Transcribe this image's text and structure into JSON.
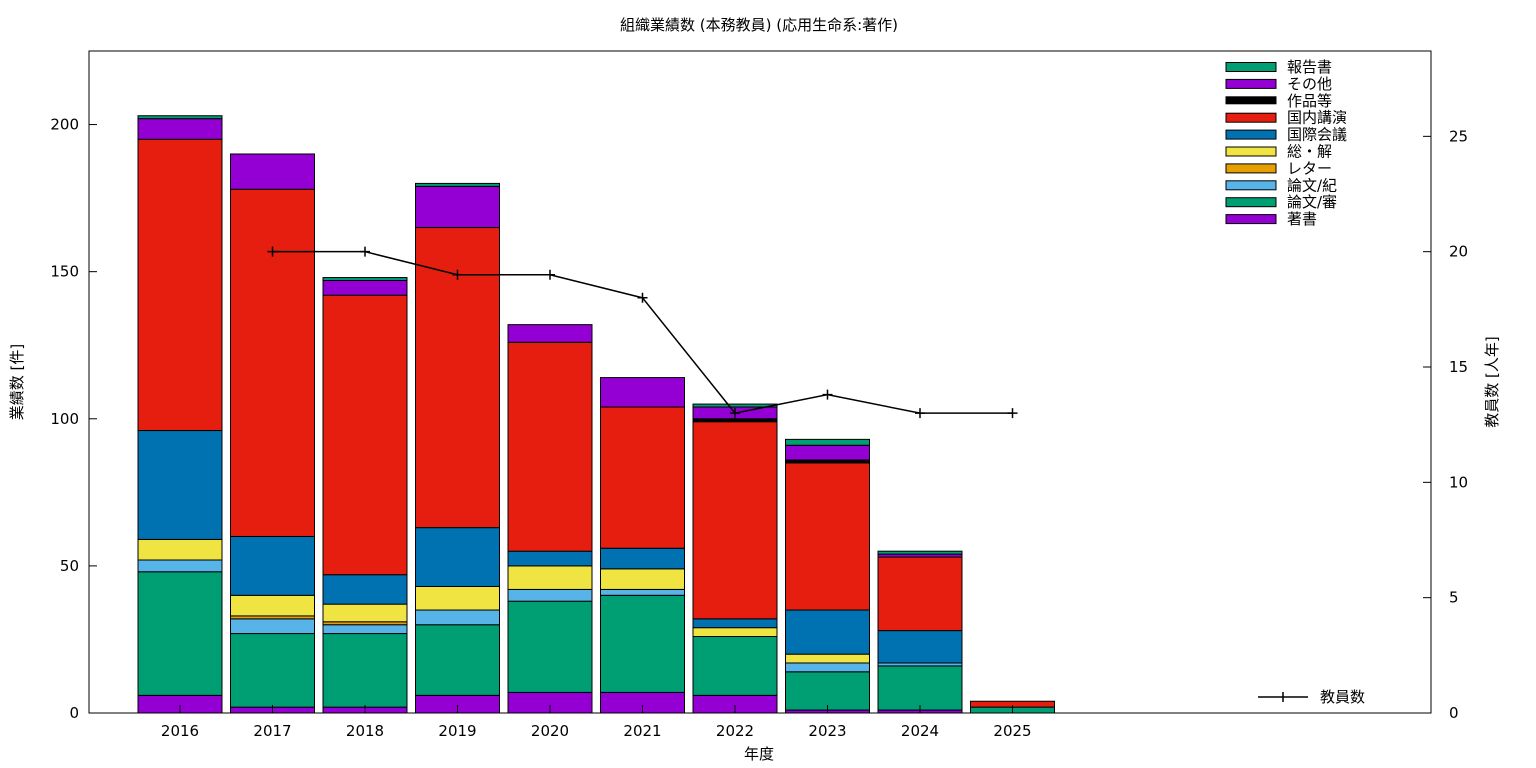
{
  "chart_data": {
    "type": "bar",
    "stacked": true,
    "title": "組織業績数 (本務教員) (応用生命系:著作)",
    "xlabel": "年度",
    "ylabel": "業績数 [件]",
    "y2label": "教員数 [人年]",
    "ylim": [
      0,
      225
    ],
    "y2lim": [
      0,
      28.7
    ],
    "yticks": [
      0,
      50,
      100,
      150,
      200
    ],
    "y2ticks": [
      0,
      5,
      10,
      15,
      20,
      25
    ],
    "grid": false,
    "legend_position": "top-right",
    "categories": [
      "2016",
      "2017",
      "2018",
      "2019",
      "2020",
      "2021",
      "2022",
      "2023",
      "2024",
      "2025"
    ],
    "series": [
      {
        "name": "著書",
        "color": "#9400d3",
        "values": [
          6,
          2,
          2,
          6,
          7,
          7,
          6,
          1,
          1,
          0
        ]
      },
      {
        "name": "論文/審",
        "color": "#009e73",
        "values": [
          42,
          25,
          25,
          24,
          31,
          33,
          20,
          13,
          15,
          2
        ]
      },
      {
        "name": "論文/紀",
        "color": "#56b4e9",
        "values": [
          4,
          5,
          3,
          5,
          4,
          2,
          0,
          3,
          1,
          0
        ]
      },
      {
        "name": "レター",
        "color": "#e69f00",
        "values": [
          0,
          1,
          1,
          0,
          0,
          0,
          0,
          0,
          0,
          0
        ]
      },
      {
        "name": "総・解",
        "color": "#f0e442",
        "values": [
          7,
          7,
          6,
          8,
          8,
          7,
          3,
          3,
          0,
          0
        ]
      },
      {
        "name": "国際会議",
        "color": "#0072b2",
        "values": [
          37,
          20,
          10,
          20,
          5,
          7,
          3,
          15,
          11,
          0
        ]
      },
      {
        "name": "国内講演",
        "color": "#e51e10",
        "values": [
          99,
          118,
          95,
          102,
          71,
          48,
          67,
          50,
          25,
          2
        ]
      },
      {
        "name": "作品等",
        "color": "#000000",
        "values": [
          0,
          0,
          0,
          0,
          0,
          0,
          1,
          1,
          0,
          0
        ]
      },
      {
        "name": "その他",
        "color": "#9400d3",
        "values": [
          7,
          12,
          5,
          14,
          6,
          10,
          4,
          5,
          1,
          0
        ]
      },
      {
        "name": "報告書",
        "color": "#009e73",
        "values": [
          1,
          0,
          1,
          1,
          0,
          0,
          1,
          2,
          1,
          0
        ]
      }
    ],
    "legend_order": [
      "報告書",
      "その他",
      "作品等",
      "国内講演",
      "国際会議",
      "総・解",
      "レター",
      "論文/紀",
      "論文/審",
      "著書"
    ],
    "line_series": {
      "name": "教員数",
      "color": "#000000",
      "axis": "y2",
      "x": [
        "2017",
        "2018",
        "2019",
        "2020",
        "2021",
        "2022",
        "2023",
        "2024",
        "2025"
      ],
      "values": [
        20,
        20,
        19,
        19,
        18,
        13,
        13.8,
        13,
        13
      ]
    }
  }
}
